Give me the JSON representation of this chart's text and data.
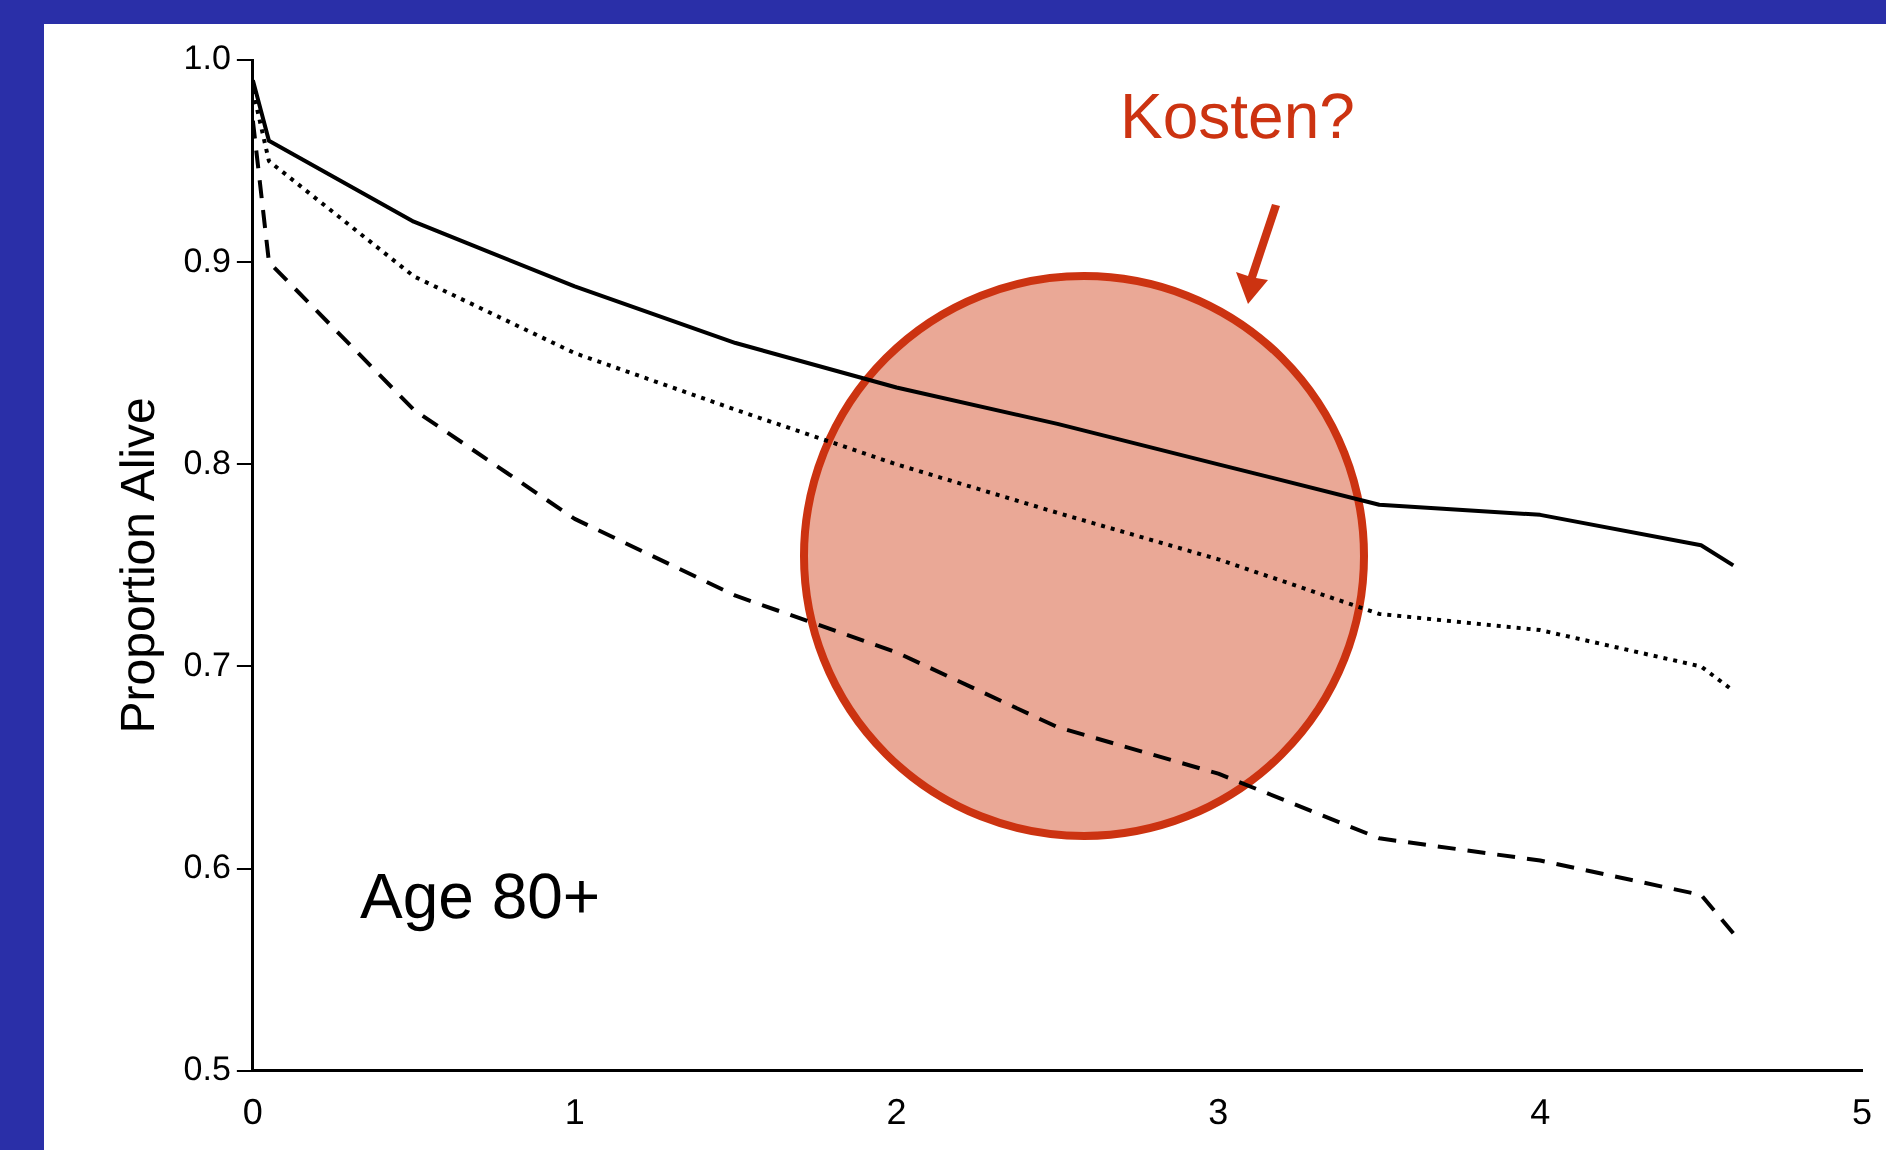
{
  "chart_data": {
    "type": "line",
    "ylabel": "Proportion Alive",
    "xlim": [
      0,
      5
    ],
    "xticks": [
      0,
      1,
      2,
      3,
      4,
      5
    ],
    "ylim": [
      0.5,
      1.0
    ],
    "yticks": [
      {
        "value": 0.5,
        "label": "0.5"
      },
      {
        "value": 0.6,
        "label": "0.6"
      },
      {
        "value": 0.7,
        "label": "0.7"
      },
      {
        "value": 0.8,
        "label": "0.8"
      },
      {
        "value": 0.9,
        "label": "0.9"
      },
      {
        "value": 1.0,
        "label": "1.0"
      }
    ],
    "grid": false,
    "legend": false,
    "marker": "none",
    "annotations": [
      "Age 80+",
      "Kosten?"
    ],
    "series": [
      {
        "color": "#000000",
        "line_style": "solid",
        "x": [
          0,
          0.05,
          0.5,
          1,
          1.5,
          2,
          2.5,
          3,
          3.5,
          4,
          4.5,
          4.6
        ],
        "values": [
          0.99,
          0.96,
          0.92,
          0.888,
          0.86,
          0.838,
          0.82,
          0.8,
          0.78,
          0.775,
          0.76,
          0.75
        ]
      },
      {
        "color": "#000000",
        "line_style": "dotted",
        "x": [
          0,
          0.05,
          0.5,
          1,
          1.5,
          2,
          2.5,
          3,
          3.5,
          4,
          4.5,
          4.6
        ],
        "values": [
          0.985,
          0.95,
          0.893,
          0.855,
          0.827,
          0.8,
          0.776,
          0.753,
          0.726,
          0.718,
          0.7,
          0.688
        ]
      },
      {
        "color": "#000000",
        "line_style": "dashed",
        "x": [
          0,
          0.05,
          0.5,
          1,
          1.5,
          2,
          2.5,
          3,
          3.5,
          4,
          4.5,
          4.6
        ],
        "values": [
          0.97,
          0.9,
          0.827,
          0.773,
          0.735,
          0.707,
          0.67,
          0.647,
          0.615,
          0.604,
          0.587,
          0.568
        ]
      }
    ]
  }
}
